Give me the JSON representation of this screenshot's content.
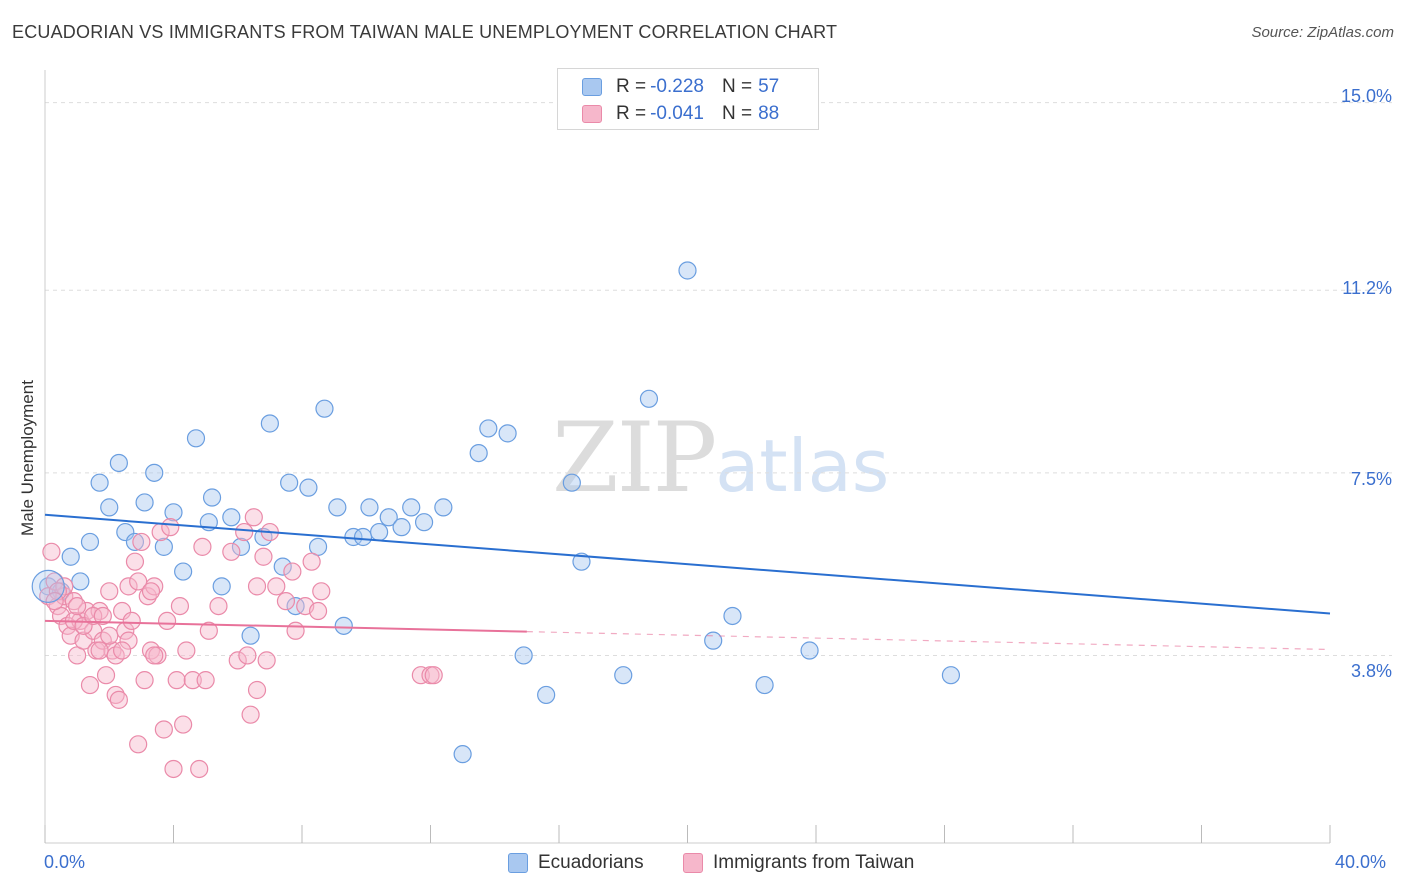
{
  "title": "ECUADORIAN VS IMMIGRANTS FROM TAIWAN MALE UNEMPLOYMENT CORRELATION CHART",
  "source": "Source: ZipAtlas.com",
  "watermark": {
    "zip": "ZIP",
    "atlas": "atlas"
  },
  "colors": {
    "blue_fill": "#a9c8f0",
    "blue_stroke": "#6a9ee0",
    "blue_line": "#2a6fd0",
    "pink_fill": "#f6b7cb",
    "pink_stroke": "#ea8aa9",
    "pink_line": "#e8729a",
    "grid": "#dddddd",
    "axis_text": "#3b6fce"
  },
  "legend": {
    "rows": [
      {
        "r_label": "R =",
        "r_value": "-0.228",
        "n_label": "N =",
        "n_value": "57"
      },
      {
        "r_label": "R =",
        "r_value": "-0.041",
        "n_label": "N =",
        "n_value": "88"
      }
    ]
  },
  "bottom_legend": {
    "series1": "Ecuadorians",
    "series2": "Immigrants from Taiwan"
  },
  "axes": {
    "ylabel": "Male Unemployment",
    "y_ticks": [
      "15.0%",
      "11.2%",
      "7.5%",
      "3.8%"
    ],
    "x_ticks": [
      "0.0%",
      "40.0%"
    ]
  },
  "chart_data": {
    "type": "scatter",
    "title": "ECUADORIAN VS IMMIGRANTS FROM TAIWAN MALE UNEMPLOYMENT CORRELATION CHART",
    "xlabel": "",
    "ylabel": "Male Unemployment",
    "xlim": [
      0,
      40
    ],
    "ylim": [
      0,
      15.5
    ],
    "y_tick_values": [
      15.0,
      11.2,
      7.5,
      3.8
    ],
    "series": [
      {
        "name": "Ecuadorians",
        "r": -0.228,
        "n": 57,
        "trend": {
          "x": [
            0,
            40
          ],
          "y": [
            6.65,
            4.65
          ],
          "solid_until": 40
        },
        "points": [
          [
            0.1,
            5.2
          ],
          [
            0.5,
            5.1
          ],
          [
            0.8,
            5.8
          ],
          [
            1.1,
            5.3
          ],
          [
            1.4,
            6.1
          ],
          [
            1.7,
            7.3
          ],
          [
            2.0,
            6.8
          ],
          [
            2.3,
            7.7
          ],
          [
            2.5,
            6.3
          ],
          [
            2.8,
            6.1
          ],
          [
            3.1,
            6.9
          ],
          [
            3.4,
            7.5
          ],
          [
            3.7,
            6.0
          ],
          [
            4.0,
            6.7
          ],
          [
            4.3,
            5.5
          ],
          [
            4.7,
            8.2
          ],
          [
            5.1,
            6.5
          ],
          [
            5.2,
            7.0
          ],
          [
            5.5,
            5.2
          ],
          [
            5.8,
            6.6
          ],
          [
            6.1,
            6.0
          ],
          [
            6.4,
            4.2
          ],
          [
            6.8,
            6.2
          ],
          [
            7.0,
            8.5
          ],
          [
            7.4,
            5.6
          ],
          [
            7.6,
            7.3
          ],
          [
            7.8,
            4.8
          ],
          [
            8.2,
            7.2
          ],
          [
            8.5,
            6.0
          ],
          [
            8.7,
            8.8
          ],
          [
            9.1,
            6.8
          ],
          [
            9.3,
            4.4
          ],
          [
            9.6,
            6.2
          ],
          [
            9.9,
            6.2
          ],
          [
            10.1,
            6.8
          ],
          [
            10.4,
            6.3
          ],
          [
            10.7,
            6.6
          ],
          [
            11.1,
            6.4
          ],
          [
            11.4,
            6.8
          ],
          [
            11.8,
            6.5
          ],
          [
            12.4,
            6.8
          ],
          [
            13.0,
            1.8
          ],
          [
            13.5,
            7.9
          ],
          [
            13.8,
            8.4
          ],
          [
            14.4,
            8.3
          ],
          [
            14.9,
            3.8
          ],
          [
            15.6,
            3.0
          ],
          [
            16.4,
            7.3
          ],
          [
            16.7,
            5.7
          ],
          [
            18.0,
            3.4
          ],
          [
            18.8,
            9.0
          ],
          [
            20.0,
            11.6
          ],
          [
            20.8,
            4.1
          ],
          [
            21.4,
            4.6
          ],
          [
            22.4,
            3.2
          ],
          [
            23.8,
            3.9
          ],
          [
            28.2,
            3.4
          ]
        ]
      },
      {
        "name": "Immigrants from Taiwan",
        "r": -0.041,
        "n": 88,
        "trend": {
          "x": [
            0,
            40
          ],
          "y": [
            4.5,
            3.92
          ],
          "solid_until": 15
        },
        "points": [
          [
            0.1,
            5.0
          ],
          [
            0.2,
            5.9
          ],
          [
            0.3,
            5.3
          ],
          [
            0.4,
            4.8
          ],
          [
            0.5,
            4.6
          ],
          [
            0.6,
            5.0
          ],
          [
            0.7,
            4.4
          ],
          [
            0.8,
            4.2
          ],
          [
            0.9,
            4.9
          ],
          [
            1.0,
            3.8
          ],
          [
            1.1,
            4.5
          ],
          [
            1.2,
            4.1
          ],
          [
            1.3,
            4.7
          ],
          [
            1.4,
            3.2
          ],
          [
            1.5,
            4.3
          ],
          [
            1.6,
            3.9
          ],
          [
            1.7,
            4.7
          ],
          [
            1.8,
            4.1
          ],
          [
            1.9,
            3.4
          ],
          [
            2.0,
            5.1
          ],
          [
            2.1,
            3.9
          ],
          [
            2.2,
            3.0
          ],
          [
            2.3,
            2.9
          ],
          [
            2.4,
            4.7
          ],
          [
            2.5,
            4.3
          ],
          [
            2.6,
            5.2
          ],
          [
            2.7,
            4.5
          ],
          [
            2.8,
            5.7
          ],
          [
            2.9,
            2.0
          ],
          [
            3.0,
            6.1
          ],
          [
            3.1,
            3.3
          ],
          [
            3.2,
            5.0
          ],
          [
            3.3,
            3.9
          ],
          [
            3.4,
            5.2
          ],
          [
            3.5,
            3.8
          ],
          [
            3.6,
            6.3
          ],
          [
            3.7,
            2.3
          ],
          [
            3.8,
            4.5
          ],
          [
            3.9,
            6.4
          ],
          [
            4.0,
            1.5
          ],
          [
            4.1,
            3.3
          ],
          [
            4.2,
            4.8
          ],
          [
            4.3,
            2.4
          ],
          [
            4.4,
            3.9
          ],
          [
            4.6,
            3.3
          ],
          [
            4.8,
            1.5
          ],
          [
            4.9,
            6.0
          ],
          [
            5.1,
            4.3
          ],
          [
            5.4,
            4.8
          ],
          [
            5.8,
            5.9
          ],
          [
            6.0,
            3.7
          ],
          [
            6.2,
            6.3
          ],
          [
            6.3,
            3.8
          ],
          [
            6.4,
            2.6
          ],
          [
            6.5,
            6.6
          ],
          [
            6.6,
            3.1
          ],
          [
            6.6,
            5.2
          ],
          [
            6.8,
            5.8
          ],
          [
            6.9,
            3.7
          ],
          [
            7.0,
            6.3
          ],
          [
            7.2,
            5.2
          ],
          [
            7.5,
            4.9
          ],
          [
            7.7,
            5.5
          ],
          [
            7.8,
            4.3
          ],
          [
            8.1,
            4.8
          ],
          [
            8.3,
            5.7
          ],
          [
            8.5,
            4.7
          ],
          [
            8.6,
            5.1
          ],
          [
            11.7,
            3.4
          ],
          [
            12.0,
            3.4
          ],
          [
            12.1,
            3.4
          ],
          [
            0.6,
            5.2
          ],
          [
            0.9,
            4.5
          ],
          [
            1.2,
            4.4
          ],
          [
            1.7,
            3.9
          ],
          [
            2.0,
            4.2
          ],
          [
            2.6,
            4.1
          ],
          [
            3.4,
            3.8
          ],
          [
            0.4,
            5.1
          ],
          [
            1.0,
            4.8
          ],
          [
            1.5,
            4.6
          ],
          [
            2.2,
            3.8
          ],
          [
            2.9,
            5.3
          ],
          [
            3.3,
            5.1
          ],
          [
            0.3,
            4.9
          ],
          [
            1.8,
            4.6
          ],
          [
            2.4,
            3.9
          ],
          [
            5.0,
            3.3
          ]
        ]
      }
    ]
  }
}
